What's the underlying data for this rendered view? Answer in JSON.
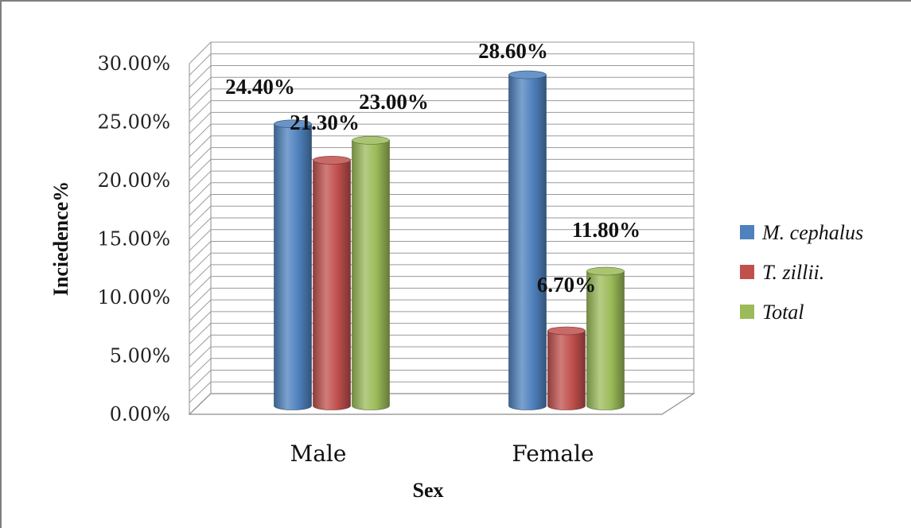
{
  "chart_data": {
    "type": "bar",
    "categories": [
      "Male",
      "Female"
    ],
    "series": [
      {
        "name": "M. cephalus",
        "color": "#4F81BD",
        "values": [
          24.4,
          28.6
        ],
        "labels": [
          "24.40%",
          "28.60%"
        ]
      },
      {
        "name": "T. zillii.",
        "color": "#C0504D",
        "values": [
          21.3,
          6.7
        ],
        "labels": [
          "21.30%",
          "6.70%"
        ]
      },
      {
        "name": "Total",
        "color": "#9BBB59",
        "values": [
          23.0,
          11.8
        ],
        "labels": [
          "23.00%",
          "11.80%"
        ]
      }
    ],
    "yticks": [
      "0.00%",
      "5.00%",
      "10.00%",
      "15.00%",
      "20.00%",
      "25.00%",
      "30.00%"
    ],
    "ylim": [
      0,
      30
    ],
    "xlabel": "Sex",
    "ylabel": "Inciedence%",
    "legend_position": "right",
    "grid": true,
    "style": "3d-cylinder"
  }
}
